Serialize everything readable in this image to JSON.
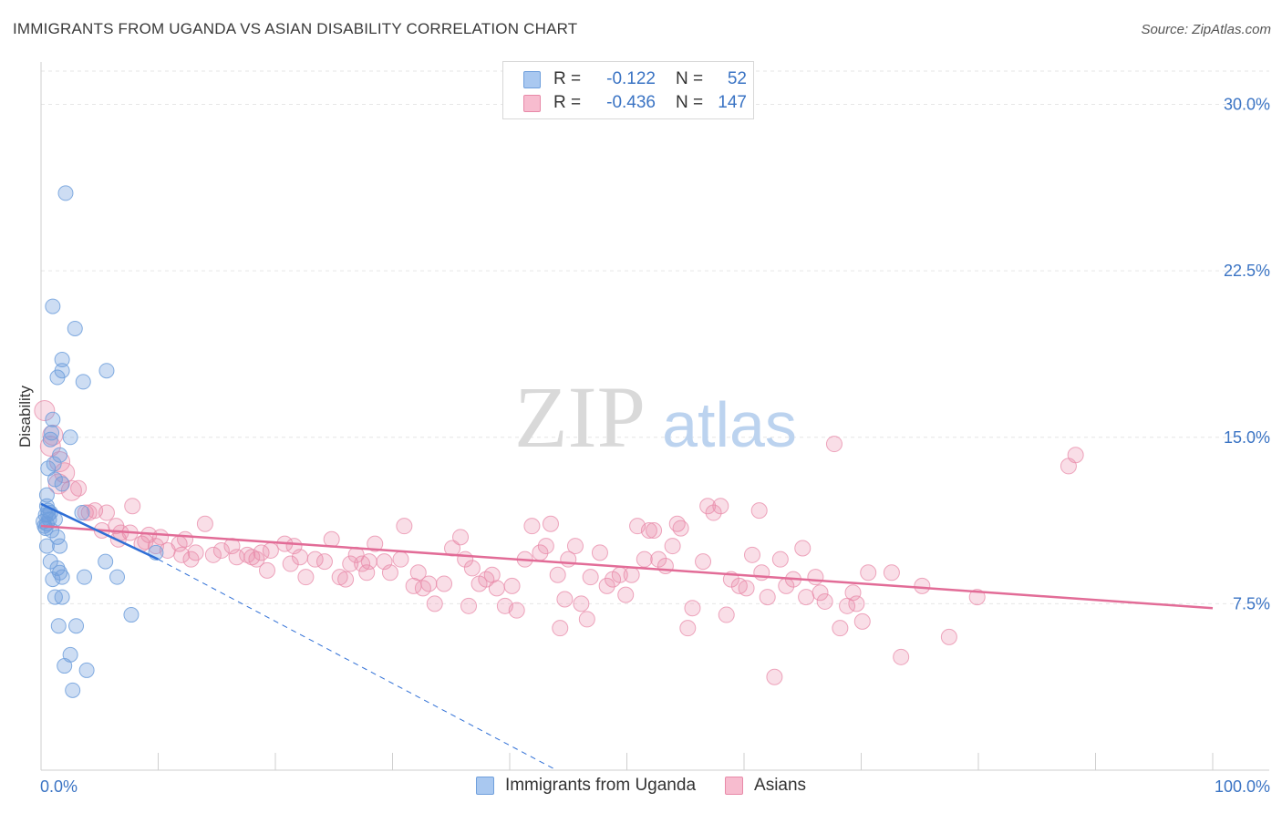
{
  "header": {
    "title": "IMMIGRANTS FROM UGANDA VS ASIAN DISABILITY CORRELATION CHART",
    "source": "Source: ZipAtlas.com"
  },
  "watermark": {
    "part1": "ZIP",
    "part2": "atlas"
  },
  "legend": {
    "rows": [
      {
        "r_label": "R =",
        "r_value": "-0.122",
        "n_label": "N =",
        "n_value": "52",
        "color": "#a9c8f0",
        "border": "#6f9fdc"
      },
      {
        "r_label": "R =",
        "r_value": "-0.436",
        "n_label": "N =",
        "n_value": "147",
        "color": "#f7bccf",
        "border": "#e889a8"
      }
    ]
  },
  "bottom_legend": [
    {
      "label": "Immigrants from Uganda",
      "color": "#a9c8f0",
      "border": "#6f9fdc"
    },
    {
      "label": "Asians",
      "color": "#f7bccf",
      "border": "#e889a8"
    }
  ],
  "chart_data": {
    "type": "scatter",
    "title": "IMMIGRANTS FROM UGANDA VS ASIAN DISABILITY CORRELATION CHART",
    "ylabel": "Disability",
    "xlabel": "",
    "x_tick_labels": [
      "0.0%",
      "100.0%"
    ],
    "y_tick_labels": [
      "7.5%",
      "15.0%",
      "22.5%",
      "30.0%"
    ],
    "y_ticks": [
      7.5,
      15.0,
      22.5,
      30.0
    ],
    "xlim": [
      0,
      100
    ],
    "ylim": [
      0,
      31.5
    ],
    "grid": "horizontal dashed",
    "colors": {
      "blue": "#6f9fdc",
      "pink": "#e889a8",
      "blue_line": "#2f6fd6",
      "pink_line": "#e26c97",
      "tick_label": "#3b74c4"
    },
    "series": [
      {
        "name": "Immigrants from Uganda",
        "color": "#a9c8f0",
        "points": [
          [
            2.1,
            26.0
          ],
          [
            1.0,
            20.9
          ],
          [
            2.9,
            19.9
          ],
          [
            1.8,
            18.5
          ],
          [
            1.8,
            18.0
          ],
          [
            1.4,
            17.7
          ],
          [
            5.6,
            18.0
          ],
          [
            3.6,
            17.5
          ],
          [
            1.0,
            15.8
          ],
          [
            0.9,
            15.2
          ],
          [
            2.5,
            15.0
          ],
          [
            0.8,
            14.9
          ],
          [
            1.6,
            14.2
          ],
          [
            0.6,
            13.6
          ],
          [
            1.2,
            13.1
          ],
          [
            1.8,
            12.9
          ],
          [
            0.5,
            12.4
          ],
          [
            0.5,
            11.9
          ],
          [
            0.6,
            11.7
          ],
          [
            0.8,
            11.6
          ],
          [
            3.5,
            11.6
          ],
          [
            0.4,
            11.5
          ],
          [
            0.6,
            11.5
          ],
          [
            0.7,
            11.3
          ],
          [
            1.2,
            11.3
          ],
          [
            0.5,
            11.1
          ],
          [
            0.3,
            11.0
          ],
          [
            0.4,
            10.9
          ],
          [
            1.4,
            10.5
          ],
          [
            0.5,
            10.1
          ],
          [
            1.6,
            10.1
          ],
          [
            0.8,
            9.4
          ],
          [
            5.5,
            9.4
          ],
          [
            1.4,
            9.1
          ],
          [
            1.6,
            8.9
          ],
          [
            1.0,
            8.6
          ],
          [
            1.8,
            8.7
          ],
          [
            3.7,
            8.7
          ],
          [
            6.5,
            8.7
          ],
          [
            1.2,
            7.8
          ],
          [
            1.8,
            7.8
          ],
          [
            7.7,
            7.0
          ],
          [
            1.5,
            6.5
          ],
          [
            3.0,
            6.5
          ],
          [
            2.5,
            5.2
          ],
          [
            2.0,
            4.7
          ],
          [
            3.9,
            4.5
          ],
          [
            2.7,
            3.6
          ],
          [
            0.2,
            11.2
          ],
          [
            0.9,
            10.8
          ],
          [
            1.1,
            13.8
          ],
          [
            9.8,
            9.8
          ]
        ]
      },
      {
        "name": "Asians",
        "color": "#f7bccf",
        "points": [
          [
            0.3,
            16.2
          ],
          [
            1.0,
            15.1
          ],
          [
            0.8,
            14.6
          ],
          [
            1.6,
            13.9
          ],
          [
            2.0,
            13.4
          ],
          [
            3.2,
            12.7
          ],
          [
            2.6,
            12.6
          ],
          [
            3.8,
            11.6
          ],
          [
            7.8,
            11.9
          ],
          [
            4.6,
            11.7
          ],
          [
            5.6,
            11.6
          ],
          [
            6.4,
            11.0
          ],
          [
            6.8,
            10.7
          ],
          [
            7.6,
            10.7
          ],
          [
            6.6,
            10.4
          ],
          [
            9.2,
            10.6
          ],
          [
            8.6,
            10.2
          ],
          [
            9.8,
            10.1
          ],
          [
            10.2,
            10.5
          ],
          [
            10.8,
            9.9
          ],
          [
            11.8,
            10.2
          ],
          [
            12.3,
            10.4
          ],
          [
            14.0,
            11.1
          ],
          [
            13.2,
            9.8
          ],
          [
            12.8,
            9.5
          ],
          [
            14.7,
            9.7
          ],
          [
            15.4,
            9.9
          ],
          [
            16.3,
            10.1
          ],
          [
            16.7,
            9.6
          ],
          [
            17.6,
            9.7
          ],
          [
            18.8,
            9.8
          ],
          [
            18.4,
            9.5
          ],
          [
            19.3,
            9.0
          ],
          [
            19.6,
            9.9
          ],
          [
            20.8,
            10.2
          ],
          [
            21.3,
            9.3
          ],
          [
            22.1,
            9.6
          ],
          [
            22.6,
            8.7
          ],
          [
            23.4,
            9.5
          ],
          [
            24.2,
            9.4
          ],
          [
            24.8,
            10.4
          ],
          [
            25.5,
            8.7
          ],
          [
            26.0,
            8.6
          ],
          [
            26.4,
            9.3
          ],
          [
            26.9,
            9.7
          ],
          [
            27.4,
            9.3
          ],
          [
            27.8,
            8.9
          ],
          [
            28.5,
            10.2
          ],
          [
            29.3,
            9.4
          ],
          [
            29.8,
            8.9
          ],
          [
            30.7,
            9.5
          ],
          [
            31.0,
            11.0
          ],
          [
            31.8,
            8.3
          ],
          [
            32.2,
            8.9
          ],
          [
            32.6,
            8.2
          ],
          [
            33.1,
            8.4
          ],
          [
            33.6,
            7.5
          ],
          [
            34.4,
            8.4
          ],
          [
            35.1,
            10.0
          ],
          [
            35.8,
            10.5
          ],
          [
            36.2,
            9.5
          ],
          [
            36.5,
            7.4
          ],
          [
            37.4,
            8.4
          ],
          [
            38.0,
            8.6
          ],
          [
            38.5,
            8.8
          ],
          [
            38.9,
            8.2
          ],
          [
            39.6,
            7.4
          ],
          [
            40.2,
            8.3
          ],
          [
            40.6,
            7.2
          ],
          [
            41.3,
            9.5
          ],
          [
            41.9,
            11.0
          ],
          [
            42.6,
            9.8
          ],
          [
            43.1,
            10.1
          ],
          [
            43.5,
            11.1
          ],
          [
            44.1,
            8.8
          ],
          [
            44.7,
            7.7
          ],
          [
            45.0,
            9.5
          ],
          [
            44.3,
            6.4
          ],
          [
            46.1,
            7.5
          ],
          [
            46.6,
            6.8
          ],
          [
            46.9,
            8.7
          ],
          [
            47.7,
            9.8
          ],
          [
            48.3,
            8.3
          ],
          [
            48.8,
            8.6
          ],
          [
            49.4,
            8.8
          ],
          [
            49.9,
            7.9
          ],
          [
            50.4,
            8.8
          ],
          [
            50.9,
            11.0
          ],
          [
            51.5,
            9.5
          ],
          [
            51.9,
            10.8
          ],
          [
            52.3,
            10.8
          ],
          [
            52.7,
            9.5
          ],
          [
            53.3,
            9.2
          ],
          [
            53.9,
            10.1
          ],
          [
            54.3,
            11.1
          ],
          [
            54.6,
            10.9
          ],
          [
            55.6,
            7.3
          ],
          [
            55.2,
            6.4
          ],
          [
            56.5,
            9.4
          ],
          [
            56.9,
            11.9
          ],
          [
            57.4,
            11.6
          ],
          [
            58.0,
            11.9
          ],
          [
            58.5,
            7.0
          ],
          [
            58.9,
            8.6
          ],
          [
            59.6,
            8.3
          ],
          [
            60.2,
            8.2
          ],
          [
            60.7,
            9.7
          ],
          [
            61.3,
            11.7
          ],
          [
            61.5,
            8.9
          ],
          [
            62.0,
            7.8
          ],
          [
            62.6,
            4.2
          ],
          [
            63.1,
            9.5
          ],
          [
            63.6,
            8.3
          ],
          [
            64.2,
            8.6
          ],
          [
            65.0,
            10.0
          ],
          [
            65.3,
            7.8
          ],
          [
            66.1,
            8.7
          ],
          [
            66.5,
            8.0
          ],
          [
            66.9,
            7.6
          ],
          [
            67.7,
            14.7
          ],
          [
            68.2,
            6.4
          ],
          [
            68.8,
            7.4
          ],
          [
            69.3,
            8.0
          ],
          [
            69.6,
            7.5
          ],
          [
            70.1,
            6.7
          ],
          [
            70.6,
            8.9
          ],
          [
            72.6,
            8.9
          ],
          [
            73.4,
            5.1
          ],
          [
            75.2,
            8.3
          ],
          [
            77.5,
            6.0
          ],
          [
            79.9,
            7.8
          ],
          [
            88.3,
            14.2
          ],
          [
            87.7,
            13.7
          ],
          [
            1.5,
            12.9
          ],
          [
            4.1,
            11.6
          ],
          [
            5.2,
            10.8
          ],
          [
            8.9,
            10.3
          ],
          [
            12.0,
            9.7
          ],
          [
            18.0,
            9.6
          ],
          [
            21.6,
            10.1
          ],
          [
            28.0,
            9.4
          ],
          [
            36.8,
            9.1
          ],
          [
            45.6,
            10.1
          ]
        ]
      }
    ],
    "trend_lines": [
      {
        "series": "Immigrants from Uganda",
        "x": [
          0,
          10
        ],
        "y": [
          12.0,
          9.5
        ],
        "extension_x": [
          10,
          44
        ],
        "extension_y": [
          9.5,
          0.0
        ],
        "style": "solid then dashed"
      },
      {
        "series": "Asians",
        "x": [
          0,
          100
        ],
        "y": [
          11.0,
          7.3
        ],
        "style": "solid"
      }
    ]
  }
}
